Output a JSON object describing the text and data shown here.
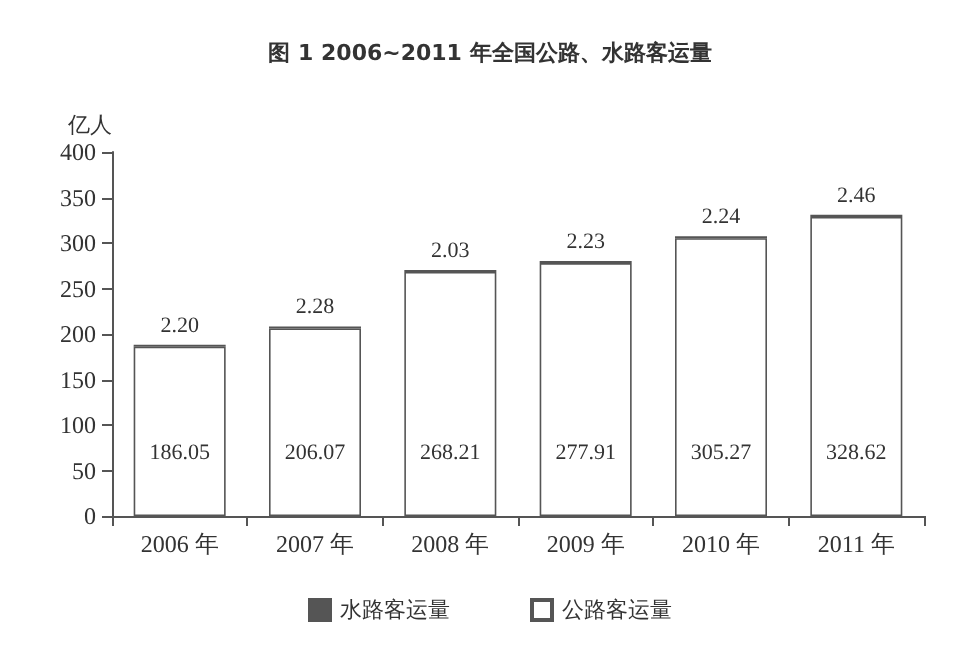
{
  "chart_data": {
    "type": "bar",
    "title": "图 1 2006~2011 年全国公路、水路客运量",
    "ylabel": "亿人",
    "categories": [
      "2006 年",
      "2007 年",
      "2008 年",
      "2009 年",
      "2010 年",
      "2011 年"
    ],
    "stacked": true,
    "series": [
      {
        "name": "公路客运量",
        "color": "#ffffff",
        "values": [
          186.05,
          206.07,
          268.21,
          277.91,
          305.27,
          328.62
        ],
        "value_labels": [
          "186.05",
          "206.07",
          "268.21",
          "277.91",
          "305.27",
          "328.62"
        ]
      },
      {
        "name": "水路客运量",
        "color": "#555555",
        "values": [
          2.2,
          2.28,
          2.03,
          2.23,
          2.24,
          2.46
        ],
        "value_labels": [
          "2.20",
          "2.28",
          "2.03",
          "2.23",
          "2.24",
          "2.46"
        ]
      }
    ],
    "ylim": [
      0,
      400
    ],
    "yticks": [
      0,
      50,
      100,
      150,
      200,
      250,
      300,
      350,
      400
    ],
    "grid": false,
    "legend": "bottom"
  }
}
